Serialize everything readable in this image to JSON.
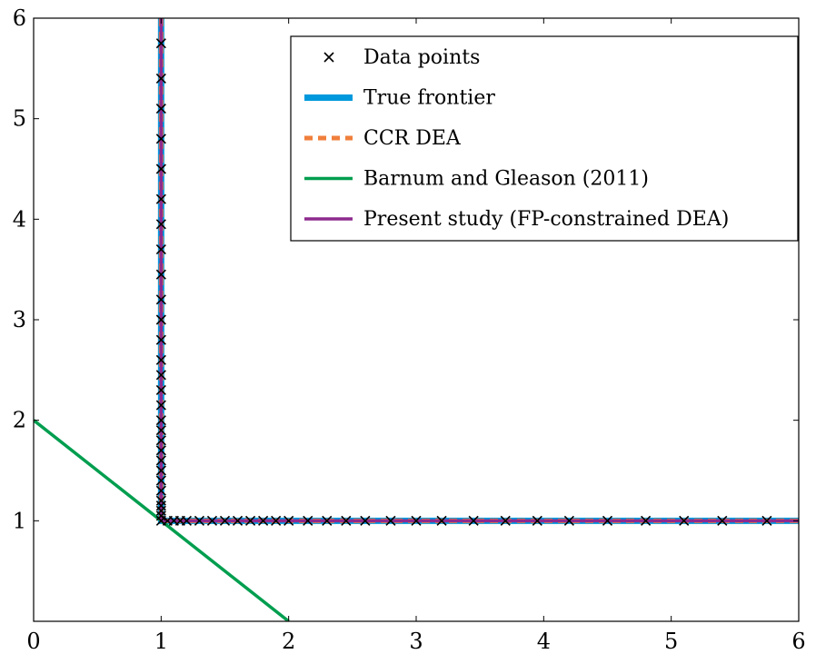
{
  "chart_data": {
    "type": "line",
    "xlim": [
      0,
      6
    ],
    "ylim": [
      0,
      6
    ],
    "xticks": [
      0,
      1,
      2,
      3,
      4,
      5,
      6
    ],
    "yticks": [
      1,
      2,
      3,
      4,
      5,
      6
    ],
    "legend": "upper right",
    "series": [
      {
        "name": "Data points",
        "type": "scatter",
        "color": "#000000",
        "x": [
          1,
          1,
          1,
          1,
          1,
          1,
          1,
          1,
          1,
          1,
          1,
          1,
          1,
          1,
          1,
          1,
          1,
          1,
          1,
          1,
          1,
          1,
          1,
          1,
          1,
          1,
          1,
          1,
          1,
          1.05,
          1.1,
          1.15,
          1.2,
          1.3,
          1.4,
          1.5,
          1.6,
          1.7,
          1.8,
          1.9,
          2.0,
          2.15,
          2.3,
          2.45,
          2.6,
          2.8,
          3.0,
          3.2,
          3.45,
          3.7,
          3.95,
          4.2,
          4.5,
          4.8,
          5.1,
          5.4,
          5.75
        ],
        "values": [
          1.0,
          1.05,
          1.1,
          1.15,
          1.2,
          1.3,
          1.4,
          1.5,
          1.6,
          1.7,
          1.8,
          1.9,
          2.0,
          2.15,
          2.3,
          2.45,
          2.6,
          2.8,
          3.0,
          3.2,
          3.45,
          3.7,
          3.95,
          4.2,
          4.5,
          4.8,
          5.1,
          5.4,
          5.75,
          1,
          1,
          1,
          1,
          1,
          1,
          1,
          1,
          1,
          1,
          1,
          1,
          1,
          1,
          1,
          1,
          1,
          1,
          1,
          1,
          1,
          1,
          1,
          1,
          1,
          1,
          1,
          1
        ]
      },
      {
        "name": "True frontier",
        "type": "line",
        "color": "#0099dd",
        "width": 7,
        "dashed": false,
        "x": [
          1,
          1,
          6
        ],
        "values": [
          6,
          1,
          1
        ]
      },
      {
        "name": "CCR DEA",
        "type": "line",
        "color": "#f07f3c",
        "width": 5,
        "dashed": true,
        "x": [
          1,
          1,
          6
        ],
        "values": [
          6,
          1,
          1
        ]
      },
      {
        "name": "Barnum and Gleason (2011)",
        "type": "line",
        "color": "#009e4f",
        "width": 3.5,
        "dashed": false,
        "x": [
          0,
          2
        ],
        "values": [
          2,
          0
        ]
      },
      {
        "name": "Present study (FP-constrained DEA)",
        "type": "line",
        "color": "#8e2a8e",
        "width": 3.5,
        "dashed": false,
        "x": [
          1,
          1,
          6
        ],
        "values": [
          6,
          1,
          1
        ]
      }
    ]
  }
}
